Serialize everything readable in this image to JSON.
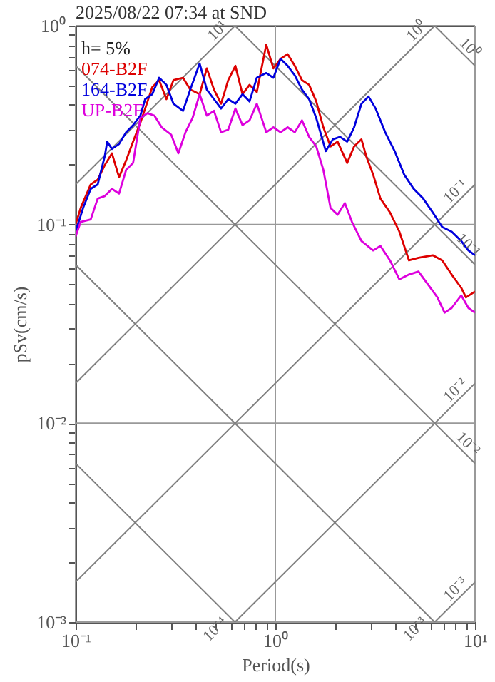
{
  "chart_data": {
    "type": "line",
    "title": "2025/08/22 07:34 at SND",
    "xlabel": "Period(s)",
    "ylabel": "pSv(cm/s)",
    "log": "xy",
    "grid": true,
    "legend": "top left",
    "marker": "none",
    "xlim": [
      0.1,
      10
    ],
    "ylim": [
      0.001,
      1
    ],
    "xticks": [
      {
        "value": 0.1,
        "label": "10⁻¹"
      },
      {
        "value": 0.2,
        "label": null
      },
      {
        "value": 0.3,
        "label": null
      },
      {
        "value": 0.4,
        "label": null
      },
      {
        "value": 0.5,
        "label": null
      },
      {
        "value": 0.6,
        "label": null
      },
      {
        "value": 0.7,
        "label": null
      },
      {
        "value": 0.8,
        "label": null
      },
      {
        "value": 0.9,
        "label": null
      },
      {
        "value": 1,
        "label": "10⁰"
      },
      {
        "value": 2,
        "label": null
      },
      {
        "value": 3,
        "label": null
      },
      {
        "value": 4,
        "label": null
      },
      {
        "value": 5,
        "label": null
      },
      {
        "value": 6,
        "label": null
      },
      {
        "value": 7,
        "label": null
      },
      {
        "value": 8,
        "label": null
      },
      {
        "value": 9,
        "label": null
      },
      {
        "value": 10,
        "label": "10¹"
      }
    ],
    "yticks": [
      {
        "value": 0.001,
        "label": "10⁻³"
      },
      {
        "value": 0.002,
        "label": null
      },
      {
        "value": 0.003,
        "label": null
      },
      {
        "value": 0.004,
        "label": null
      },
      {
        "value": 0.005,
        "label": null
      },
      {
        "value": 0.006,
        "label": null
      },
      {
        "value": 0.007,
        "label": null
      },
      {
        "value": 0.008,
        "label": null
      },
      {
        "value": 0.009,
        "label": null
      },
      {
        "value": 0.01,
        "label": "10⁻²"
      },
      {
        "value": 0.02,
        "label": null
      },
      {
        "value": 0.03,
        "label": null
      },
      {
        "value": 0.04,
        "label": null
      },
      {
        "value": 0.05,
        "label": null
      },
      {
        "value": 0.06,
        "label": null
      },
      {
        "value": 0.07,
        "label": null
      },
      {
        "value": 0.08,
        "label": null
      },
      {
        "value": 0.09,
        "label": null
      },
      {
        "value": 0.1,
        "label": "10⁻¹"
      },
      {
        "value": 0.2,
        "label": null
      },
      {
        "value": 0.3,
        "label": null
      },
      {
        "value": 0.4,
        "label": null
      },
      {
        "value": 0.5,
        "label": null
      },
      {
        "value": 0.6,
        "label": null
      },
      {
        "value": 0.7,
        "label": null
      },
      {
        "value": 0.8,
        "label": null
      },
      {
        "value": 0.9,
        "label": null
      },
      {
        "value": 1,
        "label": "10⁰"
      }
    ],
    "annotations": [
      "h= 5%",
      {
        "text": "10¹",
        "x": 0.628,
        "y": 1
      },
      {
        "text": "10⁰",
        "x": 6.28,
        "y": 1
      },
      {
        "text": "10⁻¹",
        "x": 10,
        "y": 0.159
      },
      {
        "text": "10⁻²",
        "x": 10,
        "y": 0.0159
      },
      {
        "text": "10⁻³",
        "x": 10,
        "y": 0.00159
      },
      {
        "text": "10⁰",
        "x": 10,
        "y": 0.628
      },
      {
        "text": "10⁻¹",
        "x": 10,
        "y": 0.0628
      },
      {
        "text": "10⁻²",
        "x": 10,
        "y": 0.00628
      },
      {
        "text": "10⁻³",
        "x": 6.28,
        "y": 0.001
      },
      {
        "text": "10⁻⁴",
        "x": 0.628,
        "y": 0.001
      }
    ],
    "series": [
      {
        "color": "#808080",
        "x": [
          6.28,
          10
        ],
        "values": [
          0.001,
          0.00159
        ]
      },
      {
        "color": "#808080",
        "x": [
          0.628,
          10
        ],
        "values": [
          0.001,
          0.0159
        ]
      },
      {
        "color": "#808080",
        "x": [
          0.1,
          10
        ],
        "values": [
          0.00159,
          0.159
        ]
      },
      {
        "color": "#808080",
        "x": [
          0.1,
          6.28
        ],
        "values": [
          0.0159,
          1
        ]
      },
      {
        "color": "#808080",
        "x": [
          0.1,
          0.628
        ],
        "values": [
          0.159,
          1
        ]
      },
      {
        "color": "#808080",
        "x": [
          0.1,
          0.628
        ],
        "values": [
          0.00628,
          0.001
        ]
      },
      {
        "color": "#808080",
        "x": [
          0.1,
          6.28
        ],
        "values": [
          0.0628,
          0.001
        ]
      },
      {
        "color": "#808080",
        "x": [
          0.1,
          10
        ],
        "values": [
          0.628,
          0.00628
        ]
      },
      {
        "color": "#808080",
        "x": [
          0.628,
          10
        ],
        "values": [
          1,
          0.0628
        ]
      },
      {
        "color": "#808080",
        "x": [
          6.28,
          10
        ],
        "values": [
          1,
          0.628
        ]
      },
      {
        "name": "074-B2F",
        "color": "#dd0000",
        "x": [
          0.1,
          0.106,
          0.119,
          0.129,
          0.14,
          0.152,
          0.165,
          0.179,
          0.194,
          0.211,
          0.223,
          0.242,
          0.262,
          0.285,
          0.309,
          0.345,
          0.375,
          0.418,
          0.454,
          0.493,
          0.535,
          0.581,
          0.631,
          0.685,
          0.743,
          0.808,
          0.901,
          0.978,
          1.062,
          1.153,
          1.252,
          1.36,
          1.476,
          1.603,
          1.74,
          1.89,
          2.05,
          2.29,
          2.48,
          2.7,
          2.85,
          3.09,
          3.36,
          3.75,
          4.18,
          4.67,
          5.21,
          6.14,
          6.85,
          7.64,
          8.53,
          9.01,
          10
        ],
        "values": [
          0.1,
          0.121,
          0.159,
          0.168,
          0.199,
          0.228,
          0.173,
          0.21,
          0.261,
          0.325,
          0.383,
          0.49,
          0.532,
          0.427,
          0.532,
          0.547,
          0.477,
          0.452,
          0.61,
          0.477,
          0.405,
          0.532,
          0.628,
          0.452,
          0.504,
          0.464,
          0.803,
          0.61,
          0.681,
          0.719,
          0.628,
          0.532,
          0.504,
          0.416,
          0.308,
          0.247,
          0.261,
          0.204,
          0.247,
          0.268,
          0.221,
          0.178,
          0.135,
          0.115,
          0.092,
          0.066,
          0.068,
          0.07,
          0.066,
          0.056,
          0.048,
          0.043,
          0.046
        ]
      },
      {
        "name": "164-B2F",
        "color": "#0000dd",
        "x": [
          0.1,
          0.109,
          0.119,
          0.129,
          0.14,
          0.144,
          0.152,
          0.165,
          0.179,
          0.194,
          0.211,
          0.223,
          0.242,
          0.262,
          0.285,
          0.309,
          0.345,
          0.375,
          0.418,
          0.454,
          0.493,
          0.535,
          0.581,
          0.631,
          0.685,
          0.743,
          0.808,
          0.901,
          0.978,
          1.062,
          1.153,
          1.252,
          1.36,
          1.476,
          1.603,
          1.79,
          1.94,
          2.11,
          2.29,
          2.48,
          2.7,
          2.93,
          3.18,
          3.55,
          3.96,
          4.42,
          4.93,
          5.5,
          6.14,
          6.85,
          7.64,
          8.53,
          9.27,
          10
        ],
        "values": [
          0.092,
          0.121,
          0.151,
          0.159,
          0.221,
          0.261,
          0.24,
          0.254,
          0.291,
          0.316,
          0.353,
          0.427,
          0.452,
          0.547,
          0.504,
          0.405,
          0.373,
          0.477,
          0.645,
          0.477,
          0.427,
          0.383,
          0.427,
          0.405,
          0.452,
          0.416,
          0.547,
          0.578,
          0.547,
          0.681,
          0.628,
          0.562,
          0.477,
          0.427,
          0.343,
          0.234,
          0.268,
          0.276,
          0.261,
          0.308,
          0.405,
          0.44,
          0.383,
          0.291,
          0.234,
          0.178,
          0.151,
          0.135,
          0.115,
          0.097,
          0.092,
          0.0826,
          0.074,
          0.07
        ]
      },
      {
        "name": "UP-B2F",
        "color": "#dd00dd",
        "x": [
          0.1,
          0.106,
          0.119,
          0.129,
          0.14,
          0.152,
          0.165,
          0.179,
          0.194,
          0.211,
          0.229,
          0.248,
          0.27,
          0.301,
          0.327,
          0.355,
          0.385,
          0.418,
          0.454,
          0.493,
          0.535,
          0.581,
          0.631,
          0.685,
          0.743,
          0.808,
          0.901,
          0.978,
          1.062,
          1.153,
          1.252,
          1.36,
          1.476,
          1.603,
          1.74,
          1.89,
          2.05,
          2.23,
          2.42,
          2.7,
          3.09,
          3.36,
          3.75,
          4.18,
          4.67,
          5.21,
          5.81,
          6.48,
          7.04,
          7.64,
          8.53,
          9.27,
          10
        ],
        "values": [
          0.087,
          0.103,
          0.106,
          0.135,
          0.139,
          0.151,
          0.143,
          0.188,
          0.204,
          0.343,
          0.363,
          0.353,
          0.308,
          0.283,
          0.228,
          0.291,
          0.343,
          0.452,
          0.353,
          0.373,
          0.291,
          0.3,
          0.383,
          0.316,
          0.334,
          0.405,
          0.291,
          0.308,
          0.291,
          0.308,
          0.291,
          0.334,
          0.276,
          0.247,
          0.188,
          0.121,
          0.112,
          0.128,
          0.103,
          0.0826,
          0.074,
          0.078,
          0.066,
          0.053,
          0.056,
          0.058,
          0.05,
          0.043,
          0.036,
          0.038,
          0.044,
          0.038,
          0.036
        ]
      }
    ]
  }
}
